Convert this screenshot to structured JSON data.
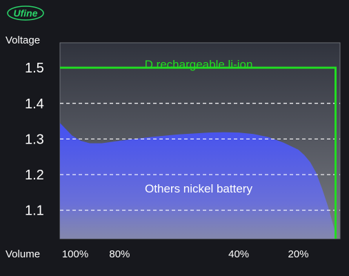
{
  "brand": {
    "logo_text": "Ufine",
    "logo_color": "#22c55e"
  },
  "chart_data": {
    "type": "area",
    "ylabel": "Voltage",
    "xlabel": "Volume",
    "ylim": [
      1.02,
      1.57
    ],
    "xlim": [
      100,
      6
    ],
    "grid": "dashed horizontal at y ticks",
    "y_ticks": [
      {
        "value": 1.5,
        "label": "1.5"
      },
      {
        "value": 1.4,
        "label": "1.4"
      },
      {
        "value": 1.3,
        "label": "1.3"
      },
      {
        "value": 1.2,
        "label": "1.2"
      },
      {
        "value": 1.1,
        "label": "1.1"
      }
    ],
    "x_ticks": [
      {
        "value": 100,
        "label": "100%"
      },
      {
        "value": 80,
        "label": "80%"
      },
      {
        "value": 40,
        "label": "40%"
      },
      {
        "value": 20,
        "label": "20%"
      }
    ],
    "series": [
      {
        "name": "D rechargeable li-ion",
        "kind": "line",
        "color": "#22dd22",
        "x": [
          100,
          7.5,
          7.5
        ],
        "y": [
          1.5,
          1.5,
          1.02
        ]
      },
      {
        "name": "Others nickel battery",
        "kind": "area",
        "color": "#5560e8",
        "x": [
          100,
          96,
          93,
          90,
          86,
          80,
          70,
          60,
          50,
          45,
          40,
          35,
          30,
          25,
          20,
          18,
          16,
          14,
          12,
          10,
          8,
          7.5
        ],
        "y": [
          1.345,
          1.31,
          1.295,
          1.288,
          1.288,
          1.295,
          1.305,
          1.313,
          1.318,
          1.319,
          1.318,
          1.314,
          1.305,
          1.29,
          1.27,
          1.255,
          1.235,
          1.205,
          1.16,
          1.11,
          1.05,
          1.03
        ]
      }
    ]
  }
}
